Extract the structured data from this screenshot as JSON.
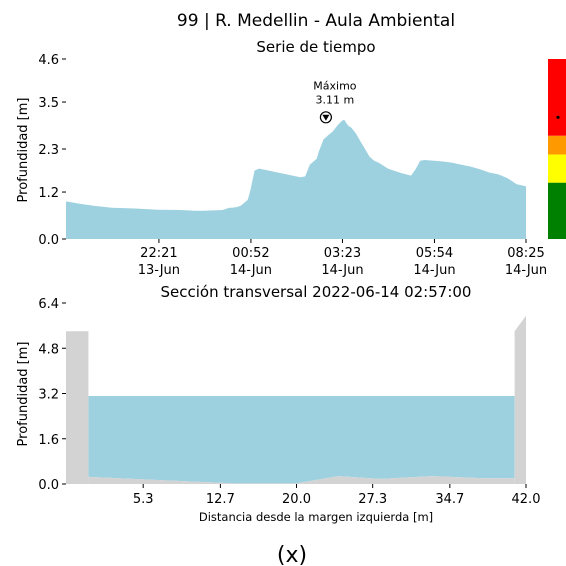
{
  "figure": {
    "title": "99 | R. Medellin - Aula Ambiental",
    "caption": "(x)"
  },
  "colors": {
    "water": "#9ed1e0",
    "bank": "#d3d3d3",
    "level_red": "#ff0000",
    "level_orange": "#ff9900",
    "level_yellow": "#ffff00",
    "level_green": "#008000"
  },
  "chart_data": [
    {
      "type": "area",
      "title": "Serie de tiempo",
      "xlabel": "",
      "ylabel": "Profundidad [m]",
      "yticks": [
        "0.0",
        "1.2",
        "2.3",
        "3.5",
        "4.6"
      ],
      "ylim": [
        0,
        4.6
      ],
      "xlim": [
        0,
        100
      ],
      "xticks": [
        {
          "x": 20.2,
          "time": "22:21",
          "date": "13-Jun"
        },
        {
          "x": 40.2,
          "time": "00:52",
          "date": "14-Jun"
        },
        {
          "x": 60.1,
          "time": "03:23",
          "date": "14-Jun"
        },
        {
          "x": 80.1,
          "time": "05:54",
          "date": "14-Jun"
        },
        {
          "x": 100,
          "time": "08:25",
          "date": "14-Jun"
        }
      ],
      "x": [
        0,
        3,
        6,
        10,
        15,
        20,
        25,
        28,
        30,
        34,
        35.5,
        36,
        37,
        38,
        39.5,
        40,
        41,
        42,
        44,
        46,
        48,
        50,
        51,
        52,
        53,
        54,
        54.5,
        55,
        56,
        57,
        58,
        59,
        60,
        60.5,
        61,
        61.5,
        62,
        63,
        64,
        65,
        66,
        67,
        68,
        70,
        72,
        73,
        74,
        75,
        76,
        77,
        78,
        80,
        82,
        84,
        86,
        88,
        90,
        92,
        94,
        96,
        98,
        100
      ],
      "values": [
        0.96,
        0.9,
        0.85,
        0.8,
        0.78,
        0.75,
        0.74,
        0.72,
        0.72,
        0.74,
        0.8,
        0.8,
        0.81,
        0.85,
        1.0,
        1.2,
        1.75,
        1.8,
        1.75,
        1.7,
        1.65,
        1.6,
        1.58,
        1.6,
        1.9,
        2.0,
        2.05,
        2.25,
        2.55,
        2.65,
        2.75,
        2.9,
        3.02,
        3.05,
        2.95,
        2.88,
        2.85,
        2.7,
        2.5,
        2.3,
        2.1,
        2.0,
        1.95,
        1.8,
        1.72,
        1.68,
        1.65,
        1.62,
        1.78,
        2.0,
        2.02,
        2.0,
        1.98,
        1.95,
        1.9,
        1.85,
        1.78,
        1.7,
        1.65,
        1.55,
        1.4,
        1.35
      ],
      "annotation": {
        "label": "Máximo",
        "value_label": "3.11 m",
        "x": 56.5,
        "y": 3.11
      },
      "level_scale": {
        "bands": [
          {
            "color": "level_green",
            "from": 0,
            "to": 1.44
          },
          {
            "color": "level_yellow",
            "from": 1.44,
            "to": 2.16
          },
          {
            "color": "level_orange",
            "from": 2.16,
            "to": 2.64
          },
          {
            "color": "level_red",
            "from": 2.64,
            "to": 4.6
          }
        ],
        "marker_value": 3.11
      }
    },
    {
      "type": "area",
      "title": "Sección transversal 2022-06-14 02:57:00",
      "xlabel": "Distancia desde la margen izquierda [m]",
      "ylabel": "Profundidad [m]",
      "yticks": [
        "0.0",
        "1.6",
        "3.2",
        "4.8",
        "6.4"
      ],
      "ylim": [
        0,
        6.4
      ],
      "xticks": [
        "5.3",
        "12.7",
        "20.0",
        "27.3",
        "34.7",
        "42.0"
      ],
      "xtick_values": [
        5.3,
        12.7,
        20.0,
        27.3,
        34.7,
        42.0
      ],
      "xlim": [
        -2.1,
        42.0
      ],
      "water_level": 3.11,
      "bed": {
        "x": [
          0.05,
          0.06,
          3,
          8,
          14,
          20,
          24,
          28,
          33,
          38,
          40.9,
          40.91
        ],
        "values": [
          5.4,
          0.25,
          0.2,
          0.12,
          0.02,
          0.02,
          0.28,
          0.18,
          0.28,
          0.2,
          0.2,
          5.4
        ]
      },
      "left_bank": {
        "x": [
          -2.1,
          0.05
        ],
        "top": 5.4
      },
      "right_bank": {
        "x": [
          40.91,
          42.0
        ],
        "top_start": 5.4,
        "top_end": 5.95
      }
    }
  ]
}
